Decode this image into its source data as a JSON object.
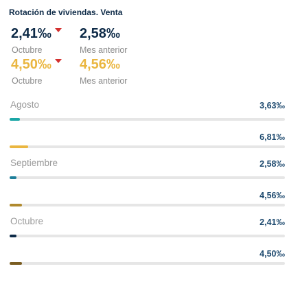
{
  "title": "Rotación de viviendas. Venta",
  "kpis": [
    {
      "value": "2,41‰",
      "label": "Octubre",
      "trend": "down",
      "color": "#0d2a47"
    },
    {
      "value": "2,58‰",
      "label": "Mes anterior",
      "trend": null,
      "color": "#0d2a47"
    },
    {
      "value": "4,50‰",
      "label": "Octubre",
      "trend": "down",
      "color": "#eab640"
    },
    {
      "value": "4,56‰",
      "label": "Mes anterior",
      "trend": null,
      "color": "#eab640"
    }
  ],
  "chart_data": {
    "type": "bar",
    "orientation": "horizontal",
    "title": "",
    "unit": "‰",
    "xlim": [
      0,
      100
    ],
    "grid": false,
    "groups": [
      {
        "category": "Agosto",
        "bars": [
          {
            "value": 3.63,
            "label": "3,63‰",
            "color": "#1aa6a6"
          },
          {
            "value": 6.81,
            "label": "6,81‰",
            "color": "#eab640"
          }
        ]
      },
      {
        "category": "Septiembre",
        "bars": [
          {
            "value": 2.58,
            "label": "2,58‰",
            "color": "#1e7f9a"
          },
          {
            "value": 4.56,
            "label": "4,56‰",
            "color": "#b08a2e"
          }
        ]
      },
      {
        "category": "Octubre",
        "bars": [
          {
            "value": 2.41,
            "label": "2,41‰",
            "color": "#0d2a47"
          },
          {
            "value": 4.5,
            "label": "4,50‰",
            "color": "#7a5d22"
          }
        ]
      }
    ]
  }
}
